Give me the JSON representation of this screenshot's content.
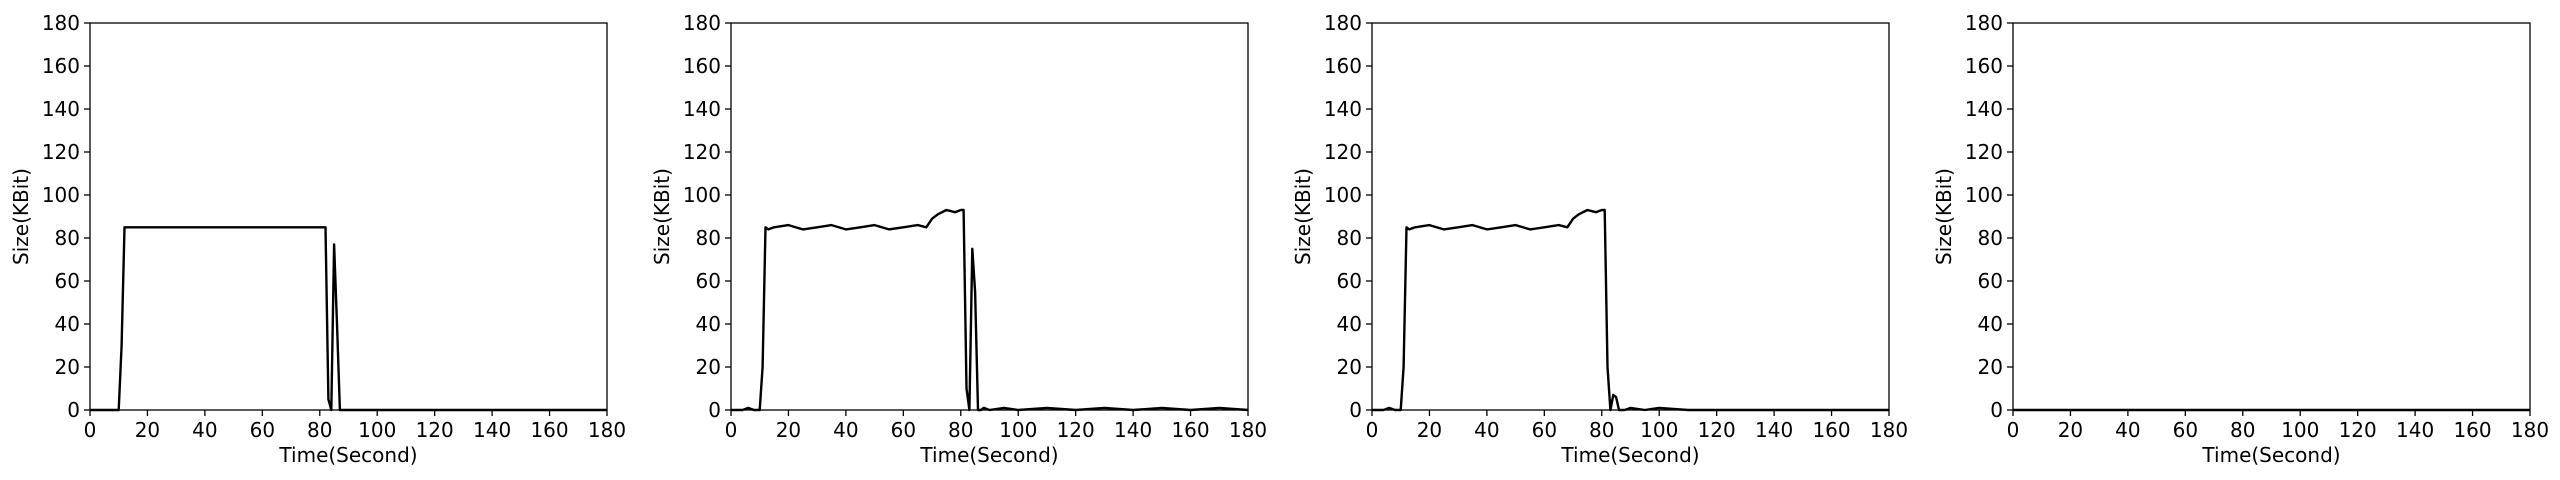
{
  "chart_data": [
    {
      "type": "line",
      "xlabel": "Time(Second)",
      "ylabel": "Size(KBit)",
      "xlim": [
        0,
        180
      ],
      "ylim": [
        0,
        180
      ],
      "xticks": [
        "0",
        "20",
        "40",
        "60",
        "80",
        "100",
        "120",
        "140",
        "160",
        "180"
      ],
      "yticks": [
        "0",
        "20",
        "40",
        "60",
        "80",
        "100",
        "120",
        "140",
        "160",
        "180"
      ],
      "grid": false,
      "color": "#000000",
      "series": [
        {
          "x": [
            0,
            4,
            8,
            10,
            11,
            12,
            13,
            20,
            30,
            40,
            50,
            60,
            70,
            80,
            82,
            83,
            84,
            85,
            86,
            87,
            88,
            90,
            100,
            120,
            140,
            160,
            180
          ],
          "y": [
            0,
            0,
            0,
            0,
            30,
            85,
            85,
            85,
            85,
            85,
            85,
            85,
            85,
            85,
            85,
            5,
            0,
            77,
            40,
            0,
            0,
            0,
            0,
            0,
            0,
            0,
            0
          ]
        }
      ]
    },
    {
      "type": "line",
      "xlabel": "Time(Second)",
      "ylabel": "Size(KBit)",
      "xlim": [
        0,
        180
      ],
      "ylim": [
        0,
        180
      ],
      "xticks": [
        "0",
        "20",
        "40",
        "60",
        "80",
        "100",
        "120",
        "140",
        "160",
        "180"
      ],
      "yticks": [
        "0",
        "20",
        "40",
        "60",
        "80",
        "100",
        "120",
        "140",
        "160",
        "180"
      ],
      "grid": false,
      "color": "#000000",
      "series": [
        {
          "x": [
            0,
            4,
            6,
            8,
            10,
            11,
            12,
            13,
            15,
            20,
            25,
            30,
            35,
            40,
            45,
            50,
            55,
            60,
            65,
            68,
            70,
            72,
            75,
            78,
            80,
            81,
            82,
            83,
            84,
            85,
            86,
            87,
            88,
            90,
            95,
            100,
            110,
            120,
            130,
            140,
            150,
            160,
            170,
            180
          ],
          "y": [
            0,
            0,
            1,
            0,
            0,
            20,
            85,
            84,
            85,
            86,
            84,
            85,
            86,
            84,
            85,
            86,
            84,
            85,
            86,
            85,
            89,
            91,
            93,
            92,
            93,
            93,
            10,
            0,
            75,
            55,
            0,
            0,
            1,
            0,
            1,
            0,
            1,
            0,
            1,
            0,
            1,
            0,
            1,
            0
          ]
        }
      ]
    },
    {
      "type": "line",
      "xlabel": "Time(Second)",
      "ylabel": "Size(KBit)",
      "xlim": [
        0,
        180
      ],
      "ylim": [
        0,
        180
      ],
      "xticks": [
        "0",
        "20",
        "40",
        "60",
        "80",
        "100",
        "120",
        "140",
        "160",
        "180"
      ],
      "yticks": [
        "0",
        "20",
        "40",
        "60",
        "80",
        "100",
        "120",
        "140",
        "160",
        "180"
      ],
      "grid": false,
      "color": "#000000",
      "series": [
        {
          "x": [
            0,
            4,
            6,
            8,
            10,
            11,
            12,
            13,
            15,
            20,
            25,
            30,
            35,
            40,
            45,
            50,
            55,
            60,
            65,
            68,
            70,
            72,
            75,
            78,
            80,
            81,
            82,
            83,
            84,
            85,
            86,
            88,
            90,
            95,
            100,
            110,
            120,
            140,
            160,
            180
          ],
          "y": [
            0,
            0,
            1,
            0,
            0,
            20,
            85,
            84,
            85,
            86,
            84,
            85,
            86,
            84,
            85,
            86,
            84,
            85,
            86,
            85,
            89,
            91,
            93,
            92,
            93,
            93,
            20,
            0,
            7,
            6,
            0,
            0,
            1,
            0,
            1,
            0,
            0,
            0,
            0,
            0
          ]
        }
      ]
    },
    {
      "type": "line",
      "xlabel": "Time(Second)",
      "ylabel": "Size(KBit)",
      "xlim": [
        0,
        180
      ],
      "ylim": [
        0,
        180
      ],
      "xticks": [
        "0",
        "20",
        "40",
        "60",
        "80",
        "100",
        "120",
        "140",
        "160",
        "180"
      ],
      "yticks": [
        "0",
        "20",
        "40",
        "60",
        "80",
        "100",
        "120",
        "140",
        "160",
        "180"
      ],
      "grid": false,
      "color": "#000000",
      "series": [
        {
          "x": [
            0,
            180
          ],
          "y": [
            0,
            0
          ]
        }
      ]
    }
  ]
}
